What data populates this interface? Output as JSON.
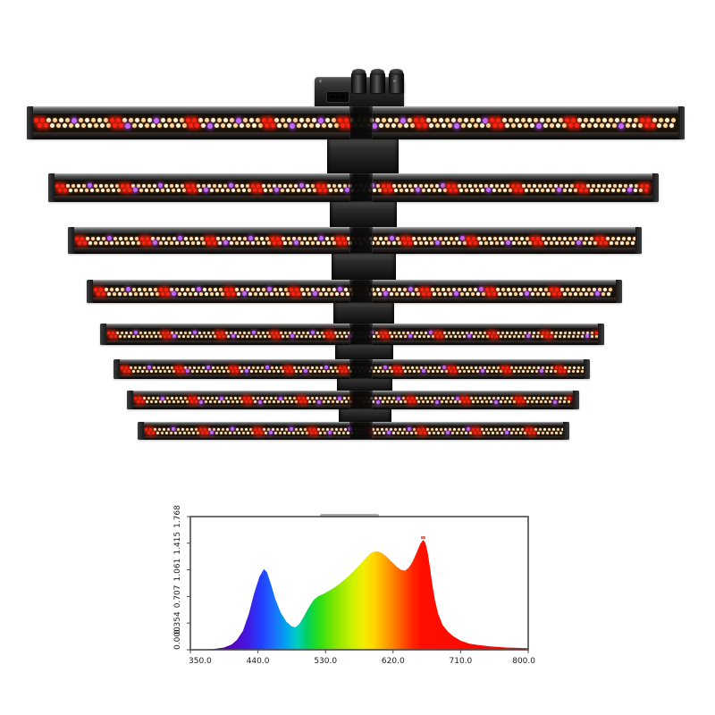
{
  "product": {
    "description": "eight-bar LED grow light fixture with central power spine and controller",
    "bar_count": 8,
    "knob_count": 3,
    "led_colors": {
      "warm": "#ffd59b",
      "warm_bright": "#fff3d8",
      "red": "#ff2212",
      "purple": "#c668ff"
    },
    "housing_color": "#2e2e2e",
    "spine_color": "#1c1c1c"
  },
  "chart_data": {
    "type": "area",
    "title": "",
    "xlabel": "",
    "ylabel": "",
    "xlim": [
      350,
      800
    ],
    "ylim": [
      0,
      1.768
    ],
    "grid": false,
    "legend": "none",
    "x_tick_labels": [
      "350.0",
      "440.0",
      "530.0",
      "620.0",
      "710.0",
      "800.0"
    ],
    "x_ticks": [
      350,
      440,
      530,
      620,
      710,
      800
    ],
    "y_tick_labels": [
      "0.000",
      "0.354",
      "0.707",
      "1.061",
      "1.415",
      "1.768"
    ],
    "y_ticks": [
      0.0,
      0.354,
      0.707,
      1.061,
      1.415,
      1.768
    ],
    "series": [
      {
        "name": "spectral intensity",
        "x": [
          350,
          380,
          395,
          405,
          412,
          420,
          428,
          435,
          442,
          448,
          452,
          457,
          463,
          470,
          478,
          485,
          490,
          495,
          500,
          507,
          514,
          520,
          527,
          534,
          541,
          548,
          555,
          562,
          569,
          576,
          583,
          590,
          597,
          604,
          611,
          618,
          625,
          631,
          636,
          641,
          646,
          651,
          656,
          660,
          663,
          666,
          669,
          672,
          676,
          680,
          686,
          693,
          700,
          710,
          722,
          735,
          750,
          770,
          800
        ],
        "y": [
          0.0,
          0.01,
          0.03,
          0.07,
          0.13,
          0.25,
          0.48,
          0.75,
          0.97,
          1.07,
          1.03,
          0.88,
          0.68,
          0.5,
          0.37,
          0.31,
          0.3,
          0.34,
          0.42,
          0.55,
          0.66,
          0.71,
          0.74,
          0.78,
          0.82,
          0.87,
          0.93,
          0.99,
          1.06,
          1.13,
          1.21,
          1.28,
          1.31,
          1.29,
          1.24,
          1.17,
          1.1,
          1.06,
          1.05,
          1.09,
          1.17,
          1.28,
          1.4,
          1.46,
          1.42,
          1.3,
          1.1,
          0.88,
          0.65,
          0.48,
          0.33,
          0.24,
          0.18,
          0.12,
          0.08,
          0.06,
          0.045,
          0.03,
          0.02
        ]
      }
    ],
    "fill": "wavelength-rainbow-gradient",
    "gradient_stops": [
      {
        "wl": 350,
        "c": "#2a004a"
      },
      {
        "wl": 400,
        "c": "#5a00b4"
      },
      {
        "wl": 425,
        "c": "#4416e0"
      },
      {
        "wl": 445,
        "c": "#2041ff"
      },
      {
        "wl": 460,
        "c": "#1e6bff"
      },
      {
        "wl": 478,
        "c": "#00a4ec"
      },
      {
        "wl": 492,
        "c": "#00cfc0"
      },
      {
        "wl": 505,
        "c": "#00d060"
      },
      {
        "wl": 522,
        "c": "#2ede12"
      },
      {
        "wl": 545,
        "c": "#8ae800"
      },
      {
        "wl": 565,
        "c": "#c9f000"
      },
      {
        "wl": 580,
        "c": "#f2ee00"
      },
      {
        "wl": 595,
        "c": "#ffd400"
      },
      {
        "wl": 610,
        "c": "#ffa400"
      },
      {
        "wl": 622,
        "c": "#ff7c00"
      },
      {
        "wl": 634,
        "c": "#ff4e00"
      },
      {
        "wl": 645,
        "c": "#ff2600"
      },
      {
        "wl": 658,
        "c": "#ff0e00"
      },
      {
        "wl": 800,
        "c": "#f60400"
      }
    ],
    "axis_color": "#4a4a4a",
    "tick_label_color": "#1a1a1a"
  }
}
